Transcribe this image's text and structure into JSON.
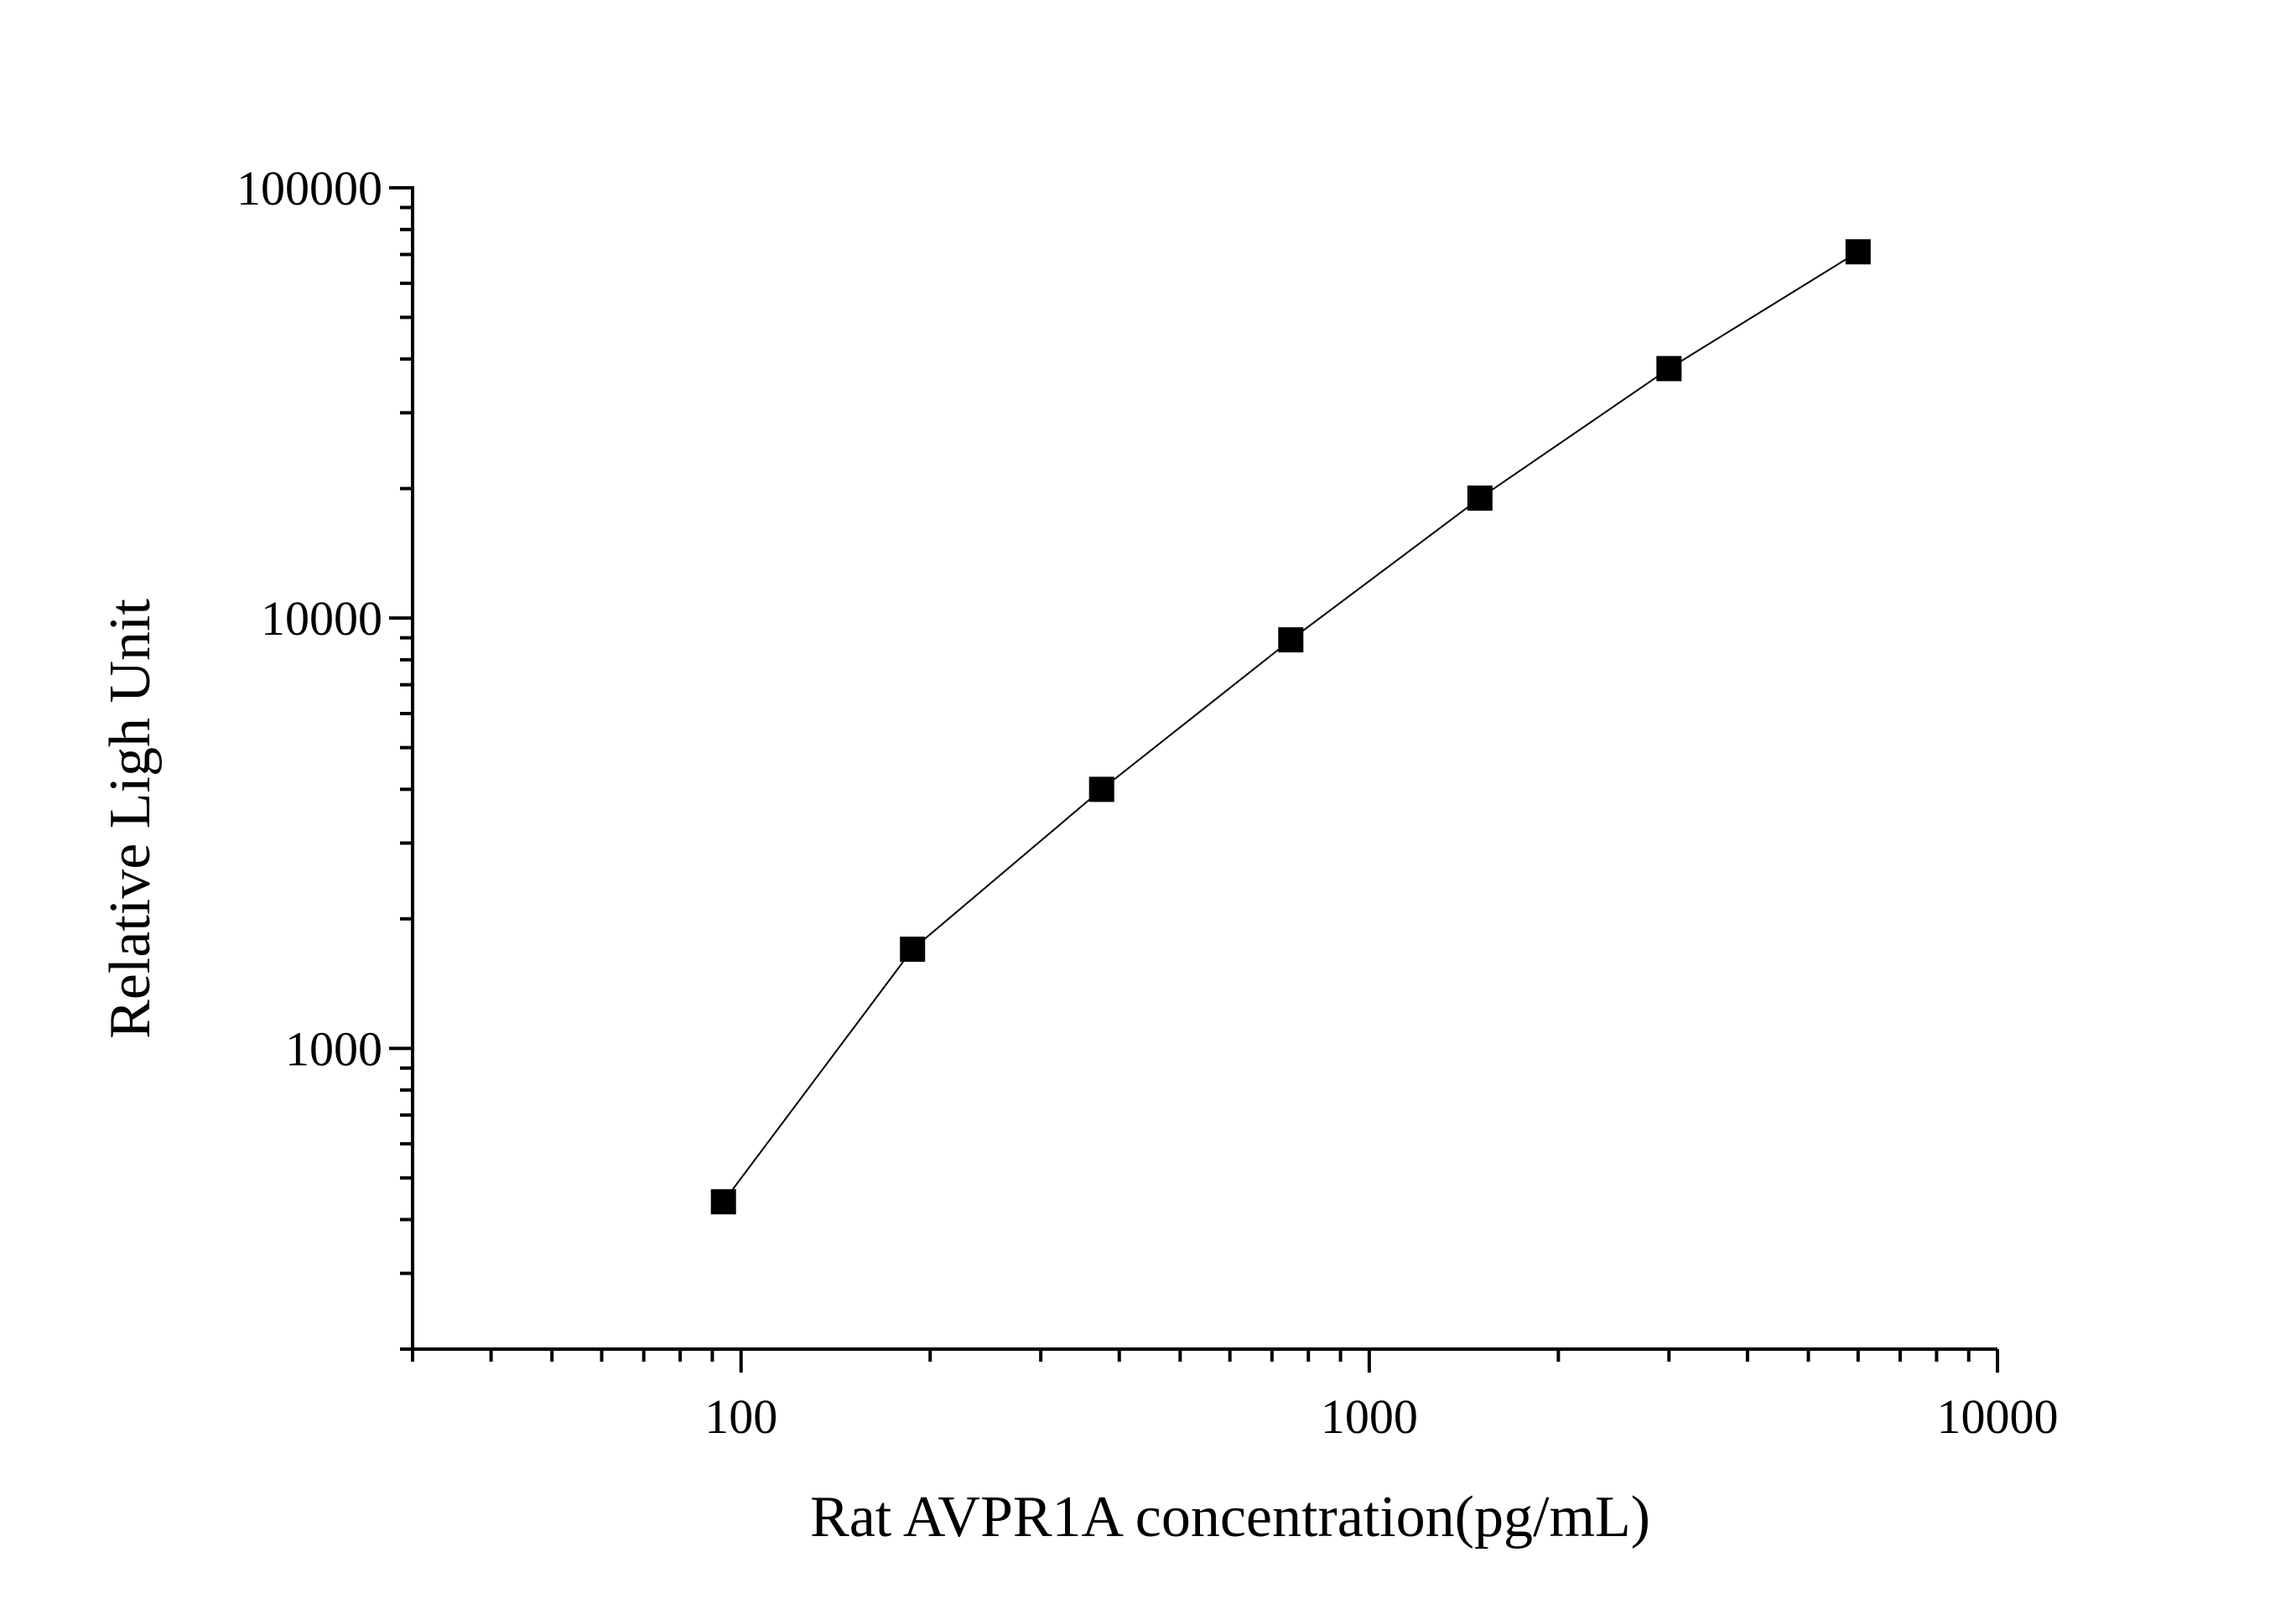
{
  "chart_data": {
    "type": "line",
    "title": "",
    "xlabel": "Rat AVPR1A concentration(pg/mL)",
    "ylabel": "Relative Ligh Unit",
    "xscale": "log",
    "yscale": "log",
    "xlim": [
      30,
      10000
    ],
    "ylim": [
      200,
      100000
    ],
    "x_ticks": [
      100,
      1000,
      10000
    ],
    "x_tick_labels": [
      "100",
      "1000",
      "10000"
    ],
    "y_ticks": [
      1000,
      10000,
      100000
    ],
    "y_tick_labels": [
      "1000",
      "10000",
      "100000"
    ],
    "grid": false,
    "legend": false,
    "marker": "square",
    "colors": {
      "line": "#000000",
      "marker": "#000000",
      "axis": "#000000"
    },
    "series": [
      {
        "x": [
          93.75,
          187.5,
          375,
          750,
          1500,
          3000,
          6000
        ],
        "y": [
          440,
          1700,
          4000,
          8900,
          19000,
          38000,
          71000
        ]
      }
    ]
  }
}
